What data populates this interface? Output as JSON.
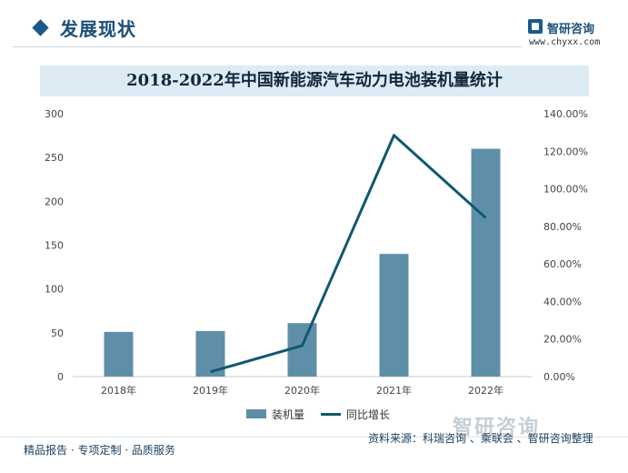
{
  "header": {
    "title": "发展现状",
    "brand_name": "智研咨询",
    "brand_url": "www.chyxx.com"
  },
  "chart_data": {
    "type": "bar",
    "title": "2018-2022年中国新能源汽车动力电池装机量统计",
    "categories": [
      "2018年",
      "2019年",
      "2020年",
      "2021年",
      "2022年"
    ],
    "series": [
      {
        "name": "装机量",
        "type": "bar",
        "axis": "left",
        "values": [
          51,
          52,
          61,
          140,
          260
        ],
        "color": "#5f8fa8"
      },
      {
        "name": "同比增长",
        "type": "line",
        "axis": "right",
        "values": [
          null,
          2.5,
          16.5,
          128.5,
          84.5
        ],
        "color": "#0f5872"
      }
    ],
    "y_left": {
      "min": 0,
      "max": 300,
      "ticks": [
        "0",
        "50",
        "100",
        "150",
        "200",
        "250",
        "300"
      ]
    },
    "y_right": {
      "min": 0,
      "max": 140,
      "ticks": [
        "0.00%",
        "20.00%",
        "40.00%",
        "60.00%",
        "80.00%",
        "100.00%",
        "120.00%",
        "140.00%"
      ]
    },
    "legend_position": "bottom",
    "grid": false
  },
  "footer": {
    "left_text": "精品报告 · 专项定制 · 品质服务",
    "source_text": "资料来源：科瑞咨询 、乘联会 、智研咨询整理",
    "brand_text": "智研咨询"
  }
}
